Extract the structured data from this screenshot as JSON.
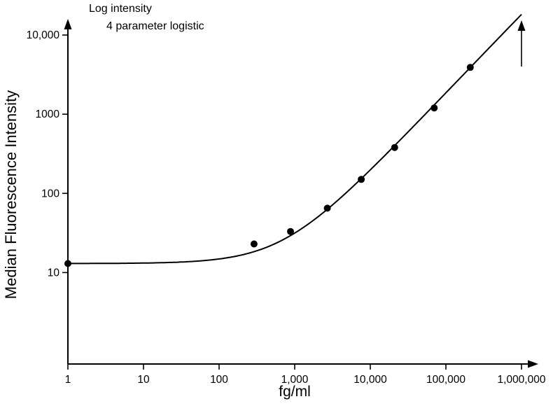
{
  "figure": {
    "annotation_line1": "Log intensity",
    "annotation_line2": "4 parameter logistic",
    "y_axis_label": "Median Fluorescence Intensity",
    "x_axis_label": "fg/ml"
  },
  "chart_data": {
    "type": "scatter",
    "title": "Log intensity",
    "subtitle": "4 parameter logistic",
    "xlabel": "fg/ml",
    "ylabel": "Median Fluorescence Intensity",
    "x_scale": "log",
    "y_scale": "log",
    "xlim": [
      1,
      1000000
    ],
    "ylim": [
      0.7,
      20000
    ],
    "grid": false,
    "legend": false,
    "x_ticks": [
      {
        "value": 1,
        "label": "1"
      },
      {
        "value": 10,
        "label": "10"
      },
      {
        "value": 100,
        "label": "100"
      },
      {
        "value": 1000,
        "label": "1,000"
      },
      {
        "value": 10000,
        "label": "10,000"
      },
      {
        "value": 100000,
        "label": "100,000"
      },
      {
        "value": 1000000,
        "label": "1,000,000"
      }
    ],
    "y_ticks": [
      {
        "value": 10,
        "label": "10"
      },
      {
        "value": 100,
        "label": "100"
      },
      {
        "value": 1000,
        "label": "1000"
      },
      {
        "value": 10000,
        "label": "10,000"
      }
    ],
    "series": [
      {
        "name": "standard-curve-points",
        "type": "scatter",
        "points": [
          [
            1,
            13
          ],
          [
            290,
            23
          ],
          [
            880,
            33
          ],
          [
            2700,
            65
          ],
          [
            7600,
            150
          ],
          [
            21000,
            380
          ],
          [
            70000,
            1200
          ],
          [
            210000,
            3900
          ]
        ]
      },
      {
        "name": "four-parameter-logistic-fit",
        "type": "line",
        "model": "4pl",
        "params": {
          "a": 13,
          "b": 1,
          "c": 54000000,
          "d": 1000000
        }
      }
    ],
    "colors": {
      "line": "#000000",
      "marker": "#000000",
      "background": "#ffffff"
    }
  }
}
